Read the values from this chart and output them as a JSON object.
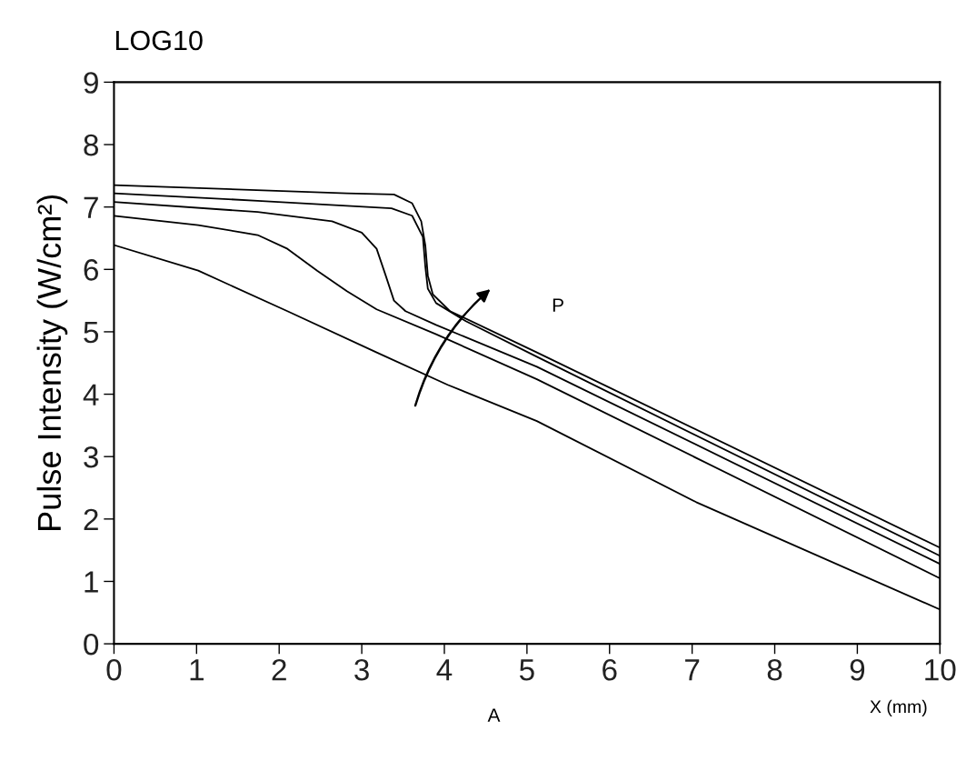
{
  "chart_data": {
    "type": "line",
    "xlabel": "X (mm)",
    "ylabel": "Pulse Intensity (W/cm²)",
    "annotations": [
      "LOG10",
      "P",
      "A"
    ],
    "xlim": [
      0,
      10
    ],
    "ylim": [
      0,
      9
    ],
    "xticks": [
      0,
      1,
      2,
      3,
      4,
      5,
      6,
      7,
      8,
      9,
      10
    ],
    "yticks": [
      0,
      1,
      2,
      3,
      4,
      5,
      6,
      7,
      8,
      9
    ],
    "grid": false,
    "marker": "none",
    "line_style": "solid",
    "series": [
      {
        "color": "#000000",
        "x": [
          0,
          1.02,
          2.1,
          3.18,
          4.04,
          5.12,
          7.05,
          10
        ],
        "values": [
          6.39,
          5.98,
          5.33,
          4.67,
          4.15,
          3.57,
          2.27,
          0.55
        ]
      },
      {
        "color": "#000000",
        "x": [
          0,
          1.02,
          1.74,
          2.1,
          2.46,
          2.82,
          3.18,
          3.9,
          5.12,
          10
        ],
        "values": [
          6.86,
          6.71,
          6.55,
          6.33,
          5.98,
          5.65,
          5.36,
          4.96,
          4.24,
          1.05
        ]
      },
      {
        "color": "#000000",
        "x": [
          0,
          1.74,
          2.64,
          3.0,
          3.18,
          3.29,
          3.39,
          3.53,
          3.9,
          5.12,
          10
        ],
        "values": [
          7.08,
          6.92,
          6.77,
          6.59,
          6.33,
          5.9,
          5.5,
          5.33,
          5.11,
          4.44,
          1.28
        ]
      },
      {
        "color": "#000000",
        "x": [
          0,
          1.74,
          3.36,
          3.61,
          3.74,
          3.77,
          3.8,
          3.9,
          4.26,
          5.12,
          10
        ],
        "values": [
          7.22,
          7.1,
          6.98,
          6.86,
          6.52,
          6.04,
          5.69,
          5.46,
          5.17,
          4.6,
          1.41
        ]
      },
      {
        "color": "#000000",
        "x": [
          0,
          2.82,
          3.39,
          3.61,
          3.72,
          3.77,
          3.8,
          3.86,
          4.07,
          5.12,
          10
        ],
        "values": [
          7.35,
          7.22,
          7.2,
          7.06,
          6.77,
          6.38,
          5.9,
          5.6,
          5.33,
          4.67,
          1.54
        ]
      }
    ]
  }
}
